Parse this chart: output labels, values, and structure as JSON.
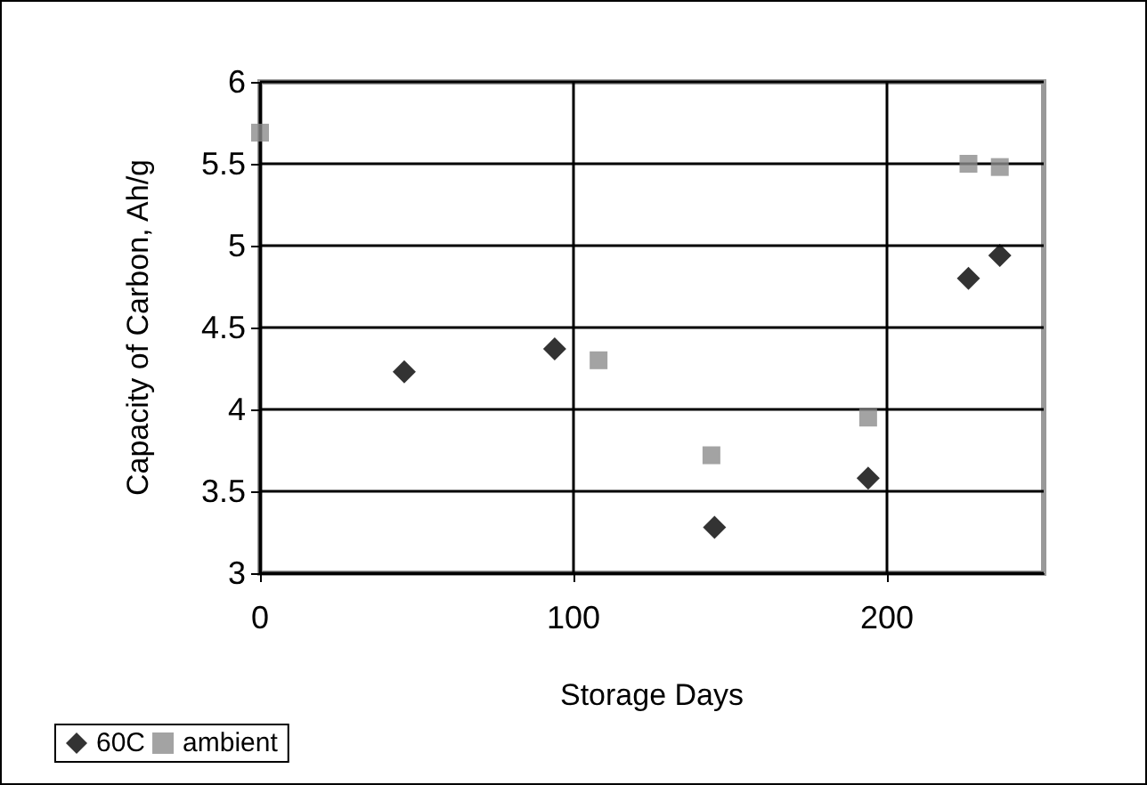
{
  "chart_data": {
    "type": "scatter",
    "xlabel": "Storage Days",
    "ylabel": "Capacity of Carbon, Ah/g",
    "xlim": [
      0,
      250
    ],
    "xticks": [
      0,
      100,
      200
    ],
    "ylim": [
      3,
      6
    ],
    "yticks": [
      3,
      3.5,
      4,
      4.5,
      5,
      5.5,
      6
    ],
    "grid": true,
    "legend": "bottom left",
    "series": [
      {
        "name": "60C",
        "color": "#000000",
        "marker": "diamond",
        "x": [
          46,
          94,
          145,
          194,
          226,
          236
        ],
        "values": [
          4.23,
          4.37,
          3.28,
          3.58,
          4.8,
          4.94
        ]
      },
      {
        "name": "ambient",
        "color": "#8c8c8c",
        "marker": "square",
        "x": [
          0,
          108,
          144,
          194,
          226,
          236
        ],
        "values": [
          5.69,
          4.3,
          3.72,
          3.95,
          5.5,
          5.48
        ]
      }
    ]
  }
}
